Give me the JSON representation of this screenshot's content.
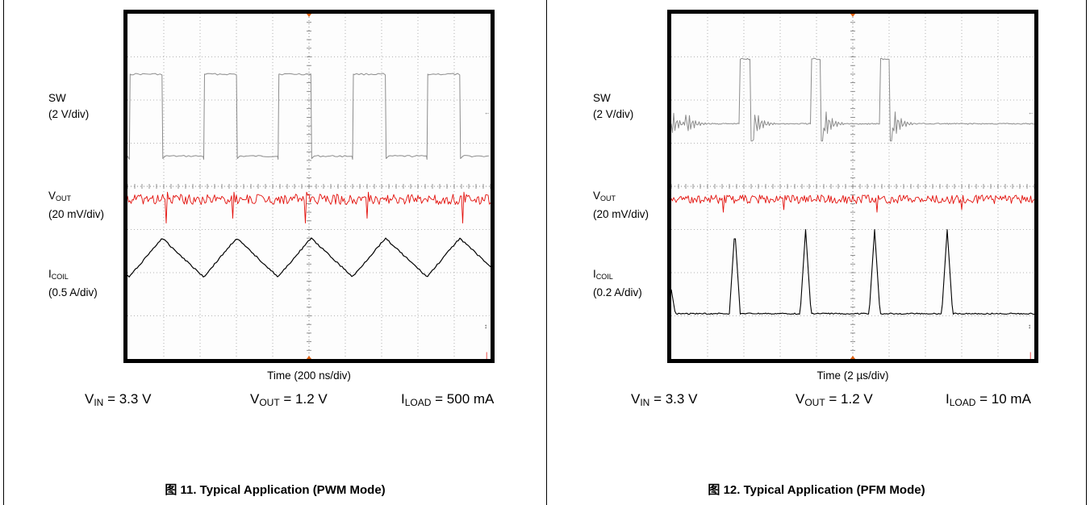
{
  "figures": [
    {
      "id": "fig11",
      "signals": [
        {
          "name": "SW",
          "scale": "(2 V/div)"
        },
        {
          "name_main": "V",
          "name_sub": "OUT",
          "scale": "(20 mV/div)"
        },
        {
          "name_main": "I",
          "name_sub": "COIL",
          "scale": "(0.5 A/div)"
        }
      ],
      "time_axis": "Time (200 ns/div)",
      "conditions": [
        {
          "main": "V",
          "sub": "IN",
          "rest": " = 3.3 V"
        },
        {
          "main": "V",
          "sub": "OUT",
          "rest": " = 1.2 V"
        },
        {
          "main": "I",
          "sub": "LOAD",
          "rest": " = 500 mA"
        }
      ],
      "caption": "图 11. Typical Application (PWM Mode)"
    },
    {
      "id": "fig12",
      "signals": [
        {
          "name": "SW",
          "scale": "(2 V/div)"
        },
        {
          "name_main": "V",
          "name_sub": "OUT",
          "scale": "(20 mV/div)"
        },
        {
          "name_main": "I",
          "name_sub": "COIL",
          "scale": "(0.2 A/div)"
        }
      ],
      "time_axis": "Time (2 µs/div)",
      "conditions": [
        {
          "main": "V",
          "sub": "IN",
          "rest": " = 3.3 V"
        },
        {
          "main": "V",
          "sub": "OUT",
          "rest": " = 1.2 V"
        },
        {
          "main": "I",
          "sub": "LOAD",
          "rest": " = 10 mA"
        }
      ],
      "caption": "图 12. Typical Application (PFM Mode)"
    }
  ],
  "chart_data": [
    {
      "type": "line",
      "grid": {
        "x_divisions": 10,
        "y_divisions": 8,
        "on": true
      },
      "x_unit": "200 ns/div",
      "series": [
        {
          "name": "SW",
          "color": "#8c8c8c",
          "shape": "square",
          "period_div": 2.05,
          "phase_div": 0.05,
          "duty": 0.44,
          "high_div": 1.4,
          "low_div": 3.3
        },
        {
          "name": "VOUT",
          "color": "#e3110c",
          "shape": "noise",
          "center_div": 4.3,
          "noise_div": 0.12,
          "spike_div": 0.55
        },
        {
          "name": "ICOIL",
          "color": "#000000",
          "shape": "triangle",
          "period_div": 2.05,
          "phase_div": 0.05,
          "duty": 0.44,
          "low_div": 6.1,
          "high_div": 5.2
        }
      ]
    },
    {
      "type": "line",
      "grid": {
        "x_divisions": 10,
        "y_divisions": 8,
        "on": true
      },
      "x_unit": "2 µs/div",
      "series": [
        {
          "name": "SW",
          "color": "#8c8c8c",
          "shape": "burst",
          "baseline_div": 2.55,
          "pulse_starts_div": [
            0.0,
            1.9,
            3.85,
            5.75
          ],
          "pulse_width_div": 0.28,
          "pulse_high_div": 1.05,
          "dip_div": 2.95
        },
        {
          "name": "VOUT",
          "color": "#e3110c",
          "shape": "noise",
          "center_div": 4.3,
          "noise_div": 0.1,
          "spike_div": 0.3
        },
        {
          "name": "ICOIL",
          "color": "#000000",
          "shape": "peaks",
          "baseline_div": 6.95,
          "peak_centers_div": [
            1.75,
            3.7,
            5.6,
            7.6
          ],
          "peak_width_div": 0.3,
          "peak_top_div": 5.0
        }
      ]
    }
  ]
}
